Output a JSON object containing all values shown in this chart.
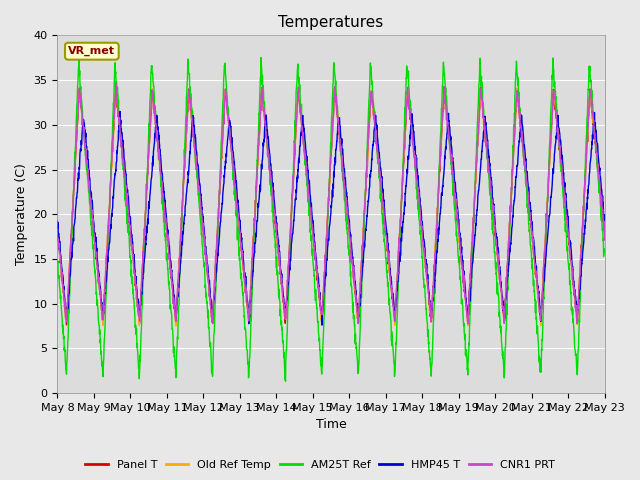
{
  "title": "Temperatures",
  "xlabel": "Time",
  "ylabel": "Temperature (C)",
  "annotation": "VR_met",
  "ylim": [
    0,
    40
  ],
  "x_tick_labels": [
    "May 8",
    "May 9",
    "May 10",
    "May 11",
    "May 12",
    "May 13",
    "May 14",
    "May 15",
    "May 16",
    "May 17",
    "May 18",
    "May 19",
    "May 20",
    "May 21",
    "May 22",
    "May 23"
  ],
  "n_days": 15,
  "legend_labels": [
    "Panel T",
    "Old Ref Temp",
    "AM25T Ref",
    "HMP45 T",
    "CNR1 PRT"
  ],
  "line_colors": [
    "#dd0000",
    "#ffaa00",
    "#00dd00",
    "#0000dd",
    "#cc44cc"
  ],
  "fig_bg": "#e8e8e8",
  "plot_bg": "#dcdcdc",
  "grid_color": "#ffffff",
  "title_fontsize": 11,
  "tick_fontsize": 8,
  "axis_label_fontsize": 9,
  "annotation_color": "#880000",
  "annotation_bg": "#ffffcc",
  "annotation_edge": "#999900"
}
